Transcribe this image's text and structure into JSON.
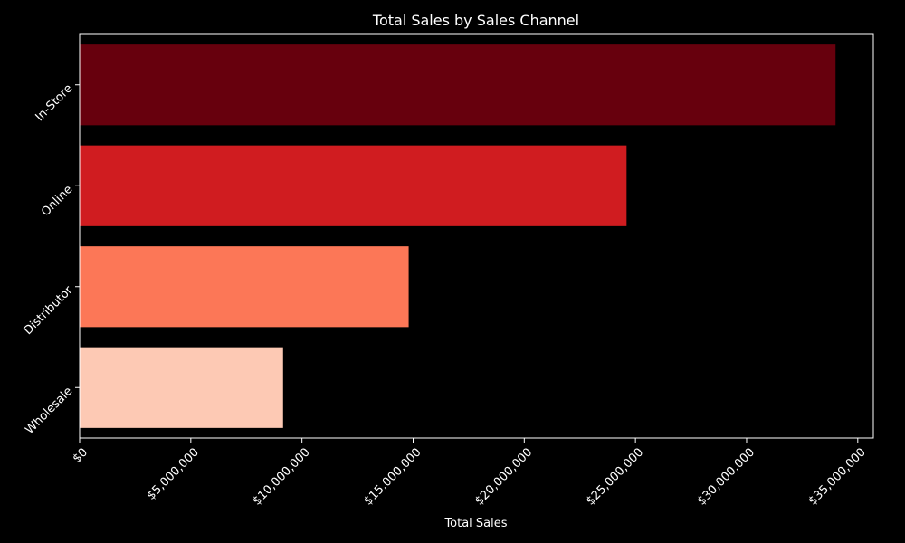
{
  "chart_data": {
    "type": "bar",
    "orientation": "horizontal",
    "title": "Total Sales by Sales Channel",
    "xlabel": "Total Sales",
    "ylabel": "",
    "categories": [
      "In-Store",
      "Online",
      "Distributor",
      "Wholesale"
    ],
    "values": [
      34000000,
      24600000,
      14800000,
      9150000
    ],
    "colors": [
      "#67000d",
      "#d01c20",
      "#fc7757",
      "#fdc9b4"
    ],
    "xlim": [
      0,
      35700000
    ],
    "xticks": [
      0,
      5000000,
      10000000,
      15000000,
      20000000,
      25000000,
      30000000,
      35000000
    ],
    "xtick_labels": [
      "$0",
      "$5,000,000",
      "$10,000,000",
      "$15,000,000",
      "$20,000,000",
      "$25,000,000",
      "$30,000,000",
      "$35,000,000"
    ],
    "background": "#000000",
    "foreground": "#ffffff",
    "grid": false,
    "legend": "none"
  }
}
